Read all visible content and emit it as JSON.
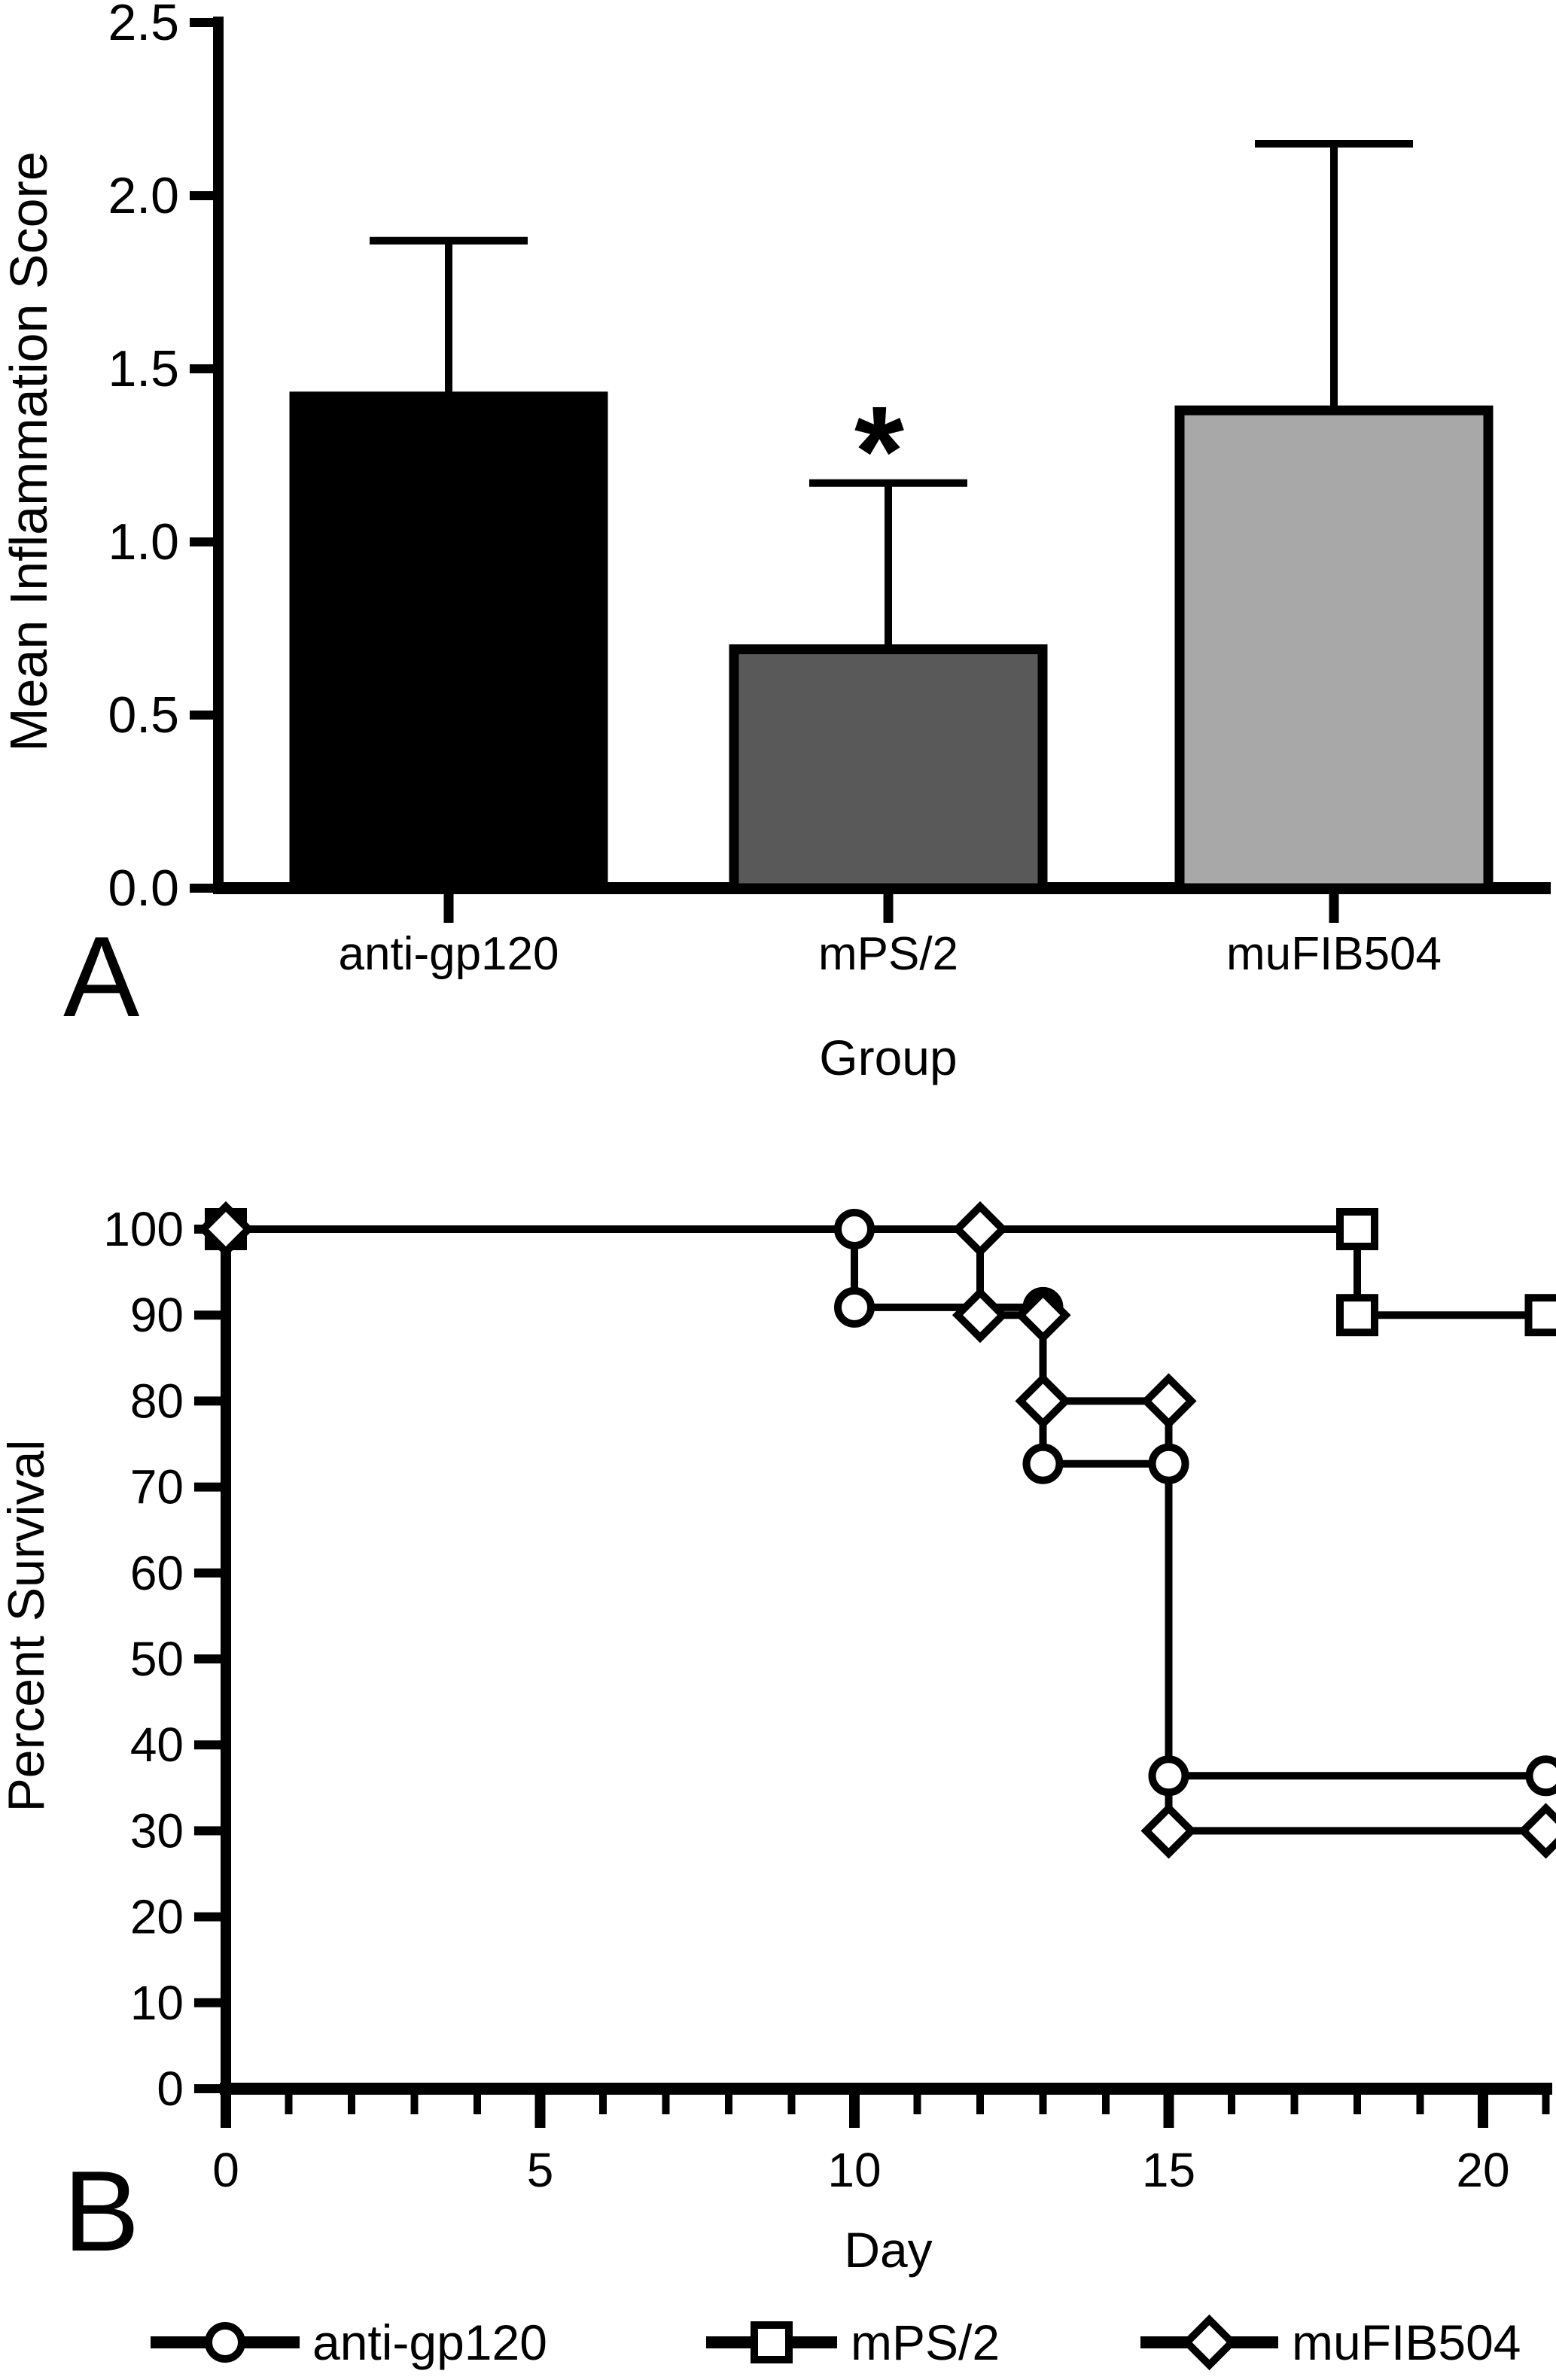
{
  "figure": {
    "panel_a": {
      "letter": "A",
      "significance_marker": "*",
      "ylabel": "Mean Inflammation  Score",
      "xlabel": "Group"
    },
    "panel_b": {
      "letter": "B",
      "ylabel": "Percent Survival",
      "xlabel": "Day",
      "legend_entries": [
        "anti-gp120",
        "mPS/2",
        "muFIB504"
      ]
    }
  },
  "chart_data": [
    {
      "type": "bar",
      "panel": "A",
      "title": "",
      "categories": [
        "anti-gp120",
        "mPS/2",
        "muFIB504"
      ],
      "values": [
        1.42,
        0.69,
        1.38
      ],
      "error_tops": [
        1.87,
        1.17,
        2.15
      ],
      "bar_colors": [
        "#000000",
        "#595959",
        "#a8a8a8"
      ],
      "bar_edge_color": "#000000",
      "annotations": [
        {
          "text": "*",
          "category_index": 1,
          "y": 1.35
        }
      ],
      "xlabel": "Group",
      "ylabel": "Mean Inflammation  Score",
      "ylim": [
        0.0,
        2.5
      ],
      "yticks": [
        0.0,
        0.5,
        1.0,
        1.5,
        2.0,
        2.5
      ],
      "ytick_labels": [
        "0.0",
        "0.5",
        "1.0",
        "1.5",
        "2.0",
        "2.5"
      ],
      "grid": false
    },
    {
      "type": "line",
      "panel": "B",
      "subtype": "kaplan-meier-step",
      "title": "",
      "xlabel": "Day",
      "ylabel": "Percent Survival",
      "xlim": [
        0,
        21.5
      ],
      "ylim": [
        0,
        100
      ],
      "xticks_major": [
        0,
        5,
        10,
        15,
        20
      ],
      "xticks_minor": [
        1,
        2,
        3,
        4,
        6,
        7,
        8,
        9,
        11,
        12,
        13,
        14,
        16,
        17,
        18,
        19,
        21
      ],
      "yticks": [
        0,
        10,
        20,
        30,
        40,
        50,
        60,
        70,
        80,
        90,
        100
      ],
      "grid": false,
      "legend_position": "bottom",
      "series": [
        {
          "name": "anti-gp120",
          "marker": "circle",
          "color": "#000000",
          "x": [
            0,
            10,
            10,
            13,
            13,
            15,
            15,
            21
          ],
          "y": [
            100,
            100,
            90.9,
            90.9,
            72.7,
            72.7,
            36.4,
            36.4
          ]
        },
        {
          "name": "mPS/2",
          "marker": "square",
          "color": "#000000",
          "x": [
            0,
            18,
            18,
            21
          ],
          "y": [
            100,
            100,
            90,
            90
          ]
        },
        {
          "name": "muFIB504",
          "marker": "diamond",
          "color": "#000000",
          "x": [
            0,
            12,
            12,
            13,
            13,
            15,
            15,
            21
          ],
          "y": [
            100,
            100,
            90,
            90,
            80,
            80,
            30,
            30
          ]
        }
      ]
    }
  ]
}
